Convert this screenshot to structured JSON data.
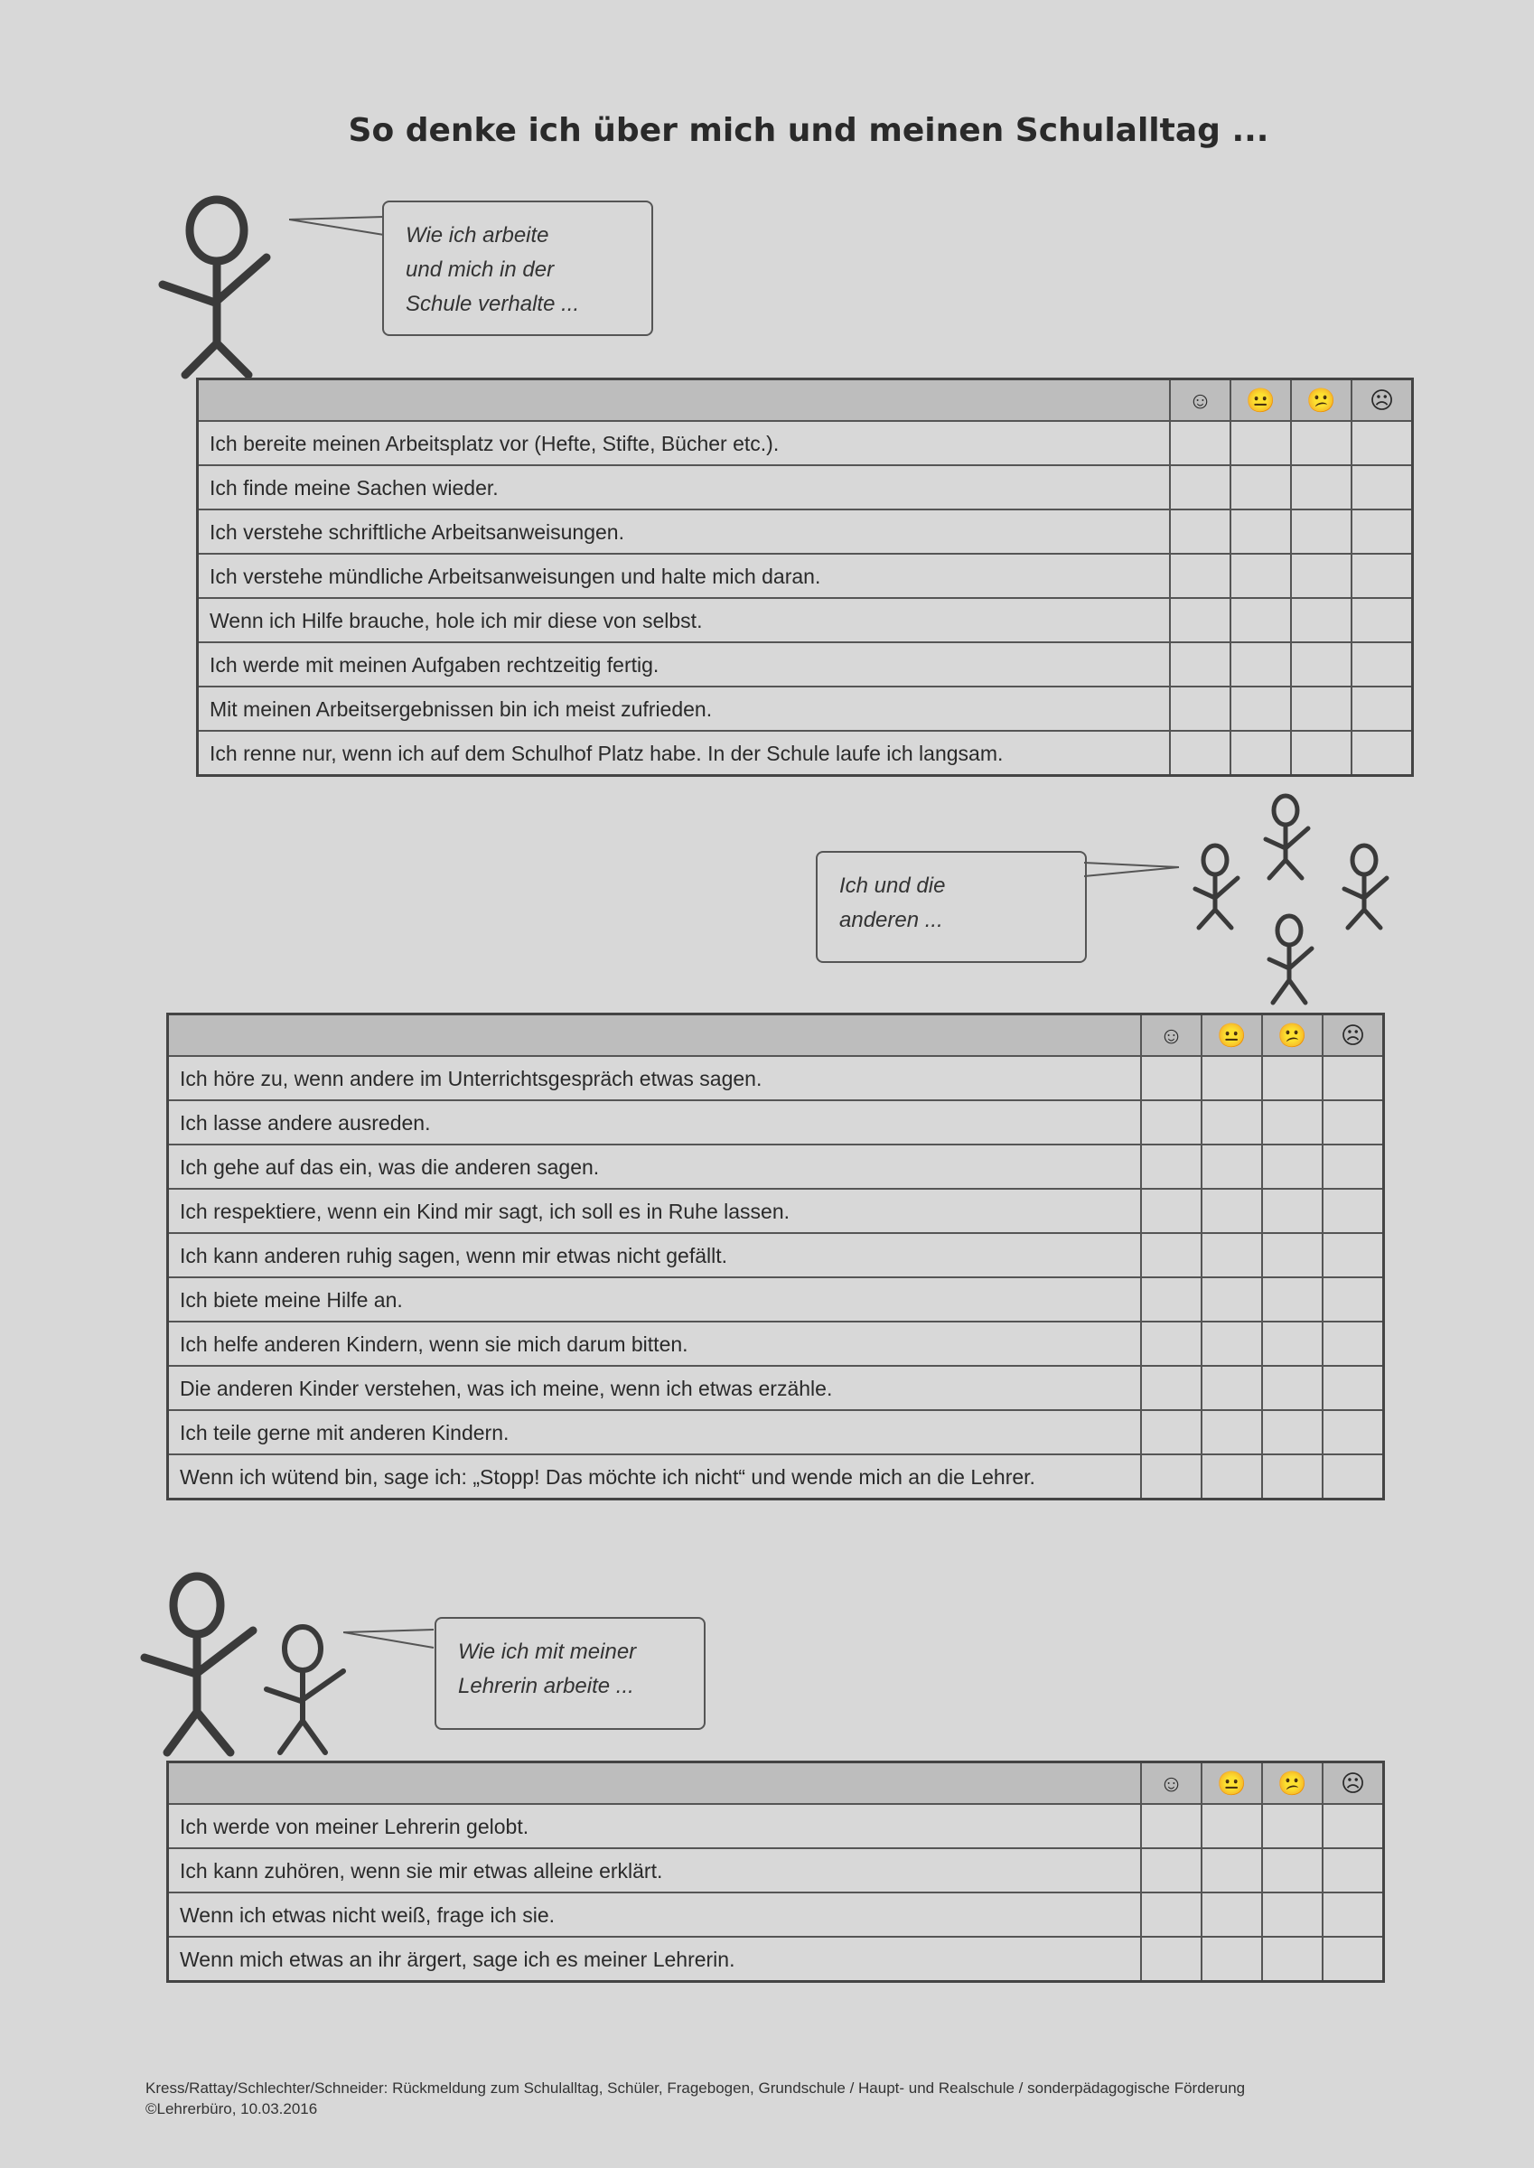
{
  "title": "So denke ich über mich und meinen Schulalltag ...",
  "rating_icons": [
    "happy-face-icon",
    "neutral-face-icon",
    "unsure-face-icon",
    "sad-face-icon"
  ],
  "rating_glyphs": [
    "☺",
    "😐",
    "😕",
    "☹"
  ],
  "sections": [
    {
      "bubble": [
        "Wie ich arbeite",
        "und mich in der",
        "Schule verhalte ..."
      ],
      "items": [
        "Ich bereite meinen Arbeitsplatz vor (Hefte, Stifte, Bücher etc.).",
        "Ich finde meine Sachen wieder.",
        "Ich verstehe schriftliche Arbeitsanweisungen.",
        "Ich verstehe mündliche Arbeitsanweisungen und halte mich daran.",
        "Wenn ich Hilfe brauche, hole ich mir diese von selbst.",
        "Ich werde mit meinen Aufgaben rechtzeitig fertig.",
        "Mit meinen Arbeitsergebnissen bin ich meist zufrieden.",
        "Ich renne nur, wenn ich auf dem Schulhof Platz habe. In der Schule laufe ich langsam."
      ]
    },
    {
      "bubble": [
        "Ich und die",
        "anderen ..."
      ],
      "items": [
        "Ich höre zu, wenn andere im Unterrichtsgespräch etwas sagen.",
        "Ich lasse andere ausreden.",
        "Ich gehe auf das ein, was die anderen sagen.",
        "Ich respektiere, wenn ein Kind mir sagt, ich soll es in Ruhe lassen.",
        "Ich kann anderen ruhig sagen, wenn mir etwas nicht gefällt.",
        "Ich biete meine Hilfe an.",
        "Ich helfe anderen Kindern, wenn sie mich darum bitten.",
        "Die anderen Kinder verstehen, was ich meine, wenn ich etwas erzähle.",
        "Ich teile gerne mit anderen Kindern.",
        "Wenn ich wütend bin, sage ich: „Stopp! Das möchte ich nicht“ und wende mich an die Lehrer."
      ]
    },
    {
      "bubble": [
        "Wie ich mit meiner",
        "Lehrerin arbeite ..."
      ],
      "items": [
        "Ich werde von meiner Lehrerin gelobt.",
        "Ich kann zuhören, wenn sie mir etwas alleine erklärt.",
        "Wenn ich etwas nicht weiß, frage ich sie.",
        "Wenn mich etwas an ihr ärgert, sage ich es meiner Lehrerin."
      ]
    }
  ],
  "footer": {
    "line1": "Kress/Rattay/Schlechter/Schneider: Rückmeldung zum Schulalltag, Schüler, Fragebogen, Grundschule / Haupt- und Realschule / sonderpädagogische Förderung",
    "line2": "©Lehrerbüro, 10.03.2016"
  }
}
